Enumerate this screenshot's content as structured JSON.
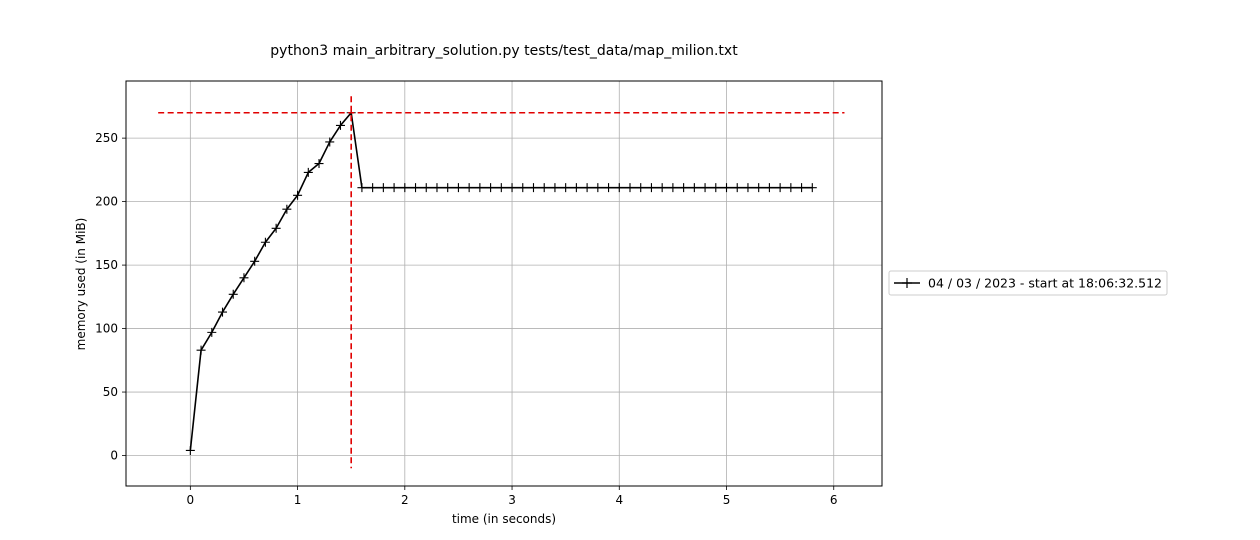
{
  "chart_data": {
    "type": "line",
    "title": "python3 main_arbitrary_solution.py tests/test_data/map_milion.txt",
    "xlabel": "time (in seconds)",
    "ylabel": "memory used (in MiB)",
    "xlim": [
      -0.6,
      6.45
    ],
    "ylim": [
      -24,
      295
    ],
    "xticks": [
      0,
      1,
      2,
      3,
      4,
      5,
      6
    ],
    "yticks": [
      0,
      50,
      100,
      150,
      200,
      250
    ],
    "xtick_labels": [
      "0",
      "1",
      "2",
      "3",
      "4",
      "5",
      "6"
    ],
    "ytick_labels": [
      "0",
      "50",
      "100",
      "150",
      "200",
      "250"
    ],
    "grid": true,
    "legend_position": "outside-right",
    "series": [
      {
        "name": "04 / 03 / 2023 - start at 18:06:32.512",
        "color": "#000000",
        "marker": "plus",
        "x": [
          0.0,
          0.1,
          0.2,
          0.3,
          0.4,
          0.5,
          0.6,
          0.7,
          0.8,
          0.9,
          1.0,
          1.1,
          1.2,
          1.3,
          1.4,
          1.5,
          1.6,
          1.7,
          1.8,
          1.9,
          2.0,
          2.1,
          2.2,
          2.3,
          2.4,
          2.5,
          2.6,
          2.7,
          2.8,
          2.9,
          3.0,
          3.1,
          3.2,
          3.3,
          3.4,
          3.5,
          3.6,
          3.7,
          3.8,
          3.9,
          4.0,
          4.1,
          4.2,
          4.3,
          4.4,
          4.5,
          4.6,
          4.7,
          4.8,
          4.9,
          5.0,
          5.1,
          5.2,
          5.3,
          5.4,
          5.5,
          5.6,
          5.7,
          5.8
        ],
        "y": [
          4,
          83,
          97,
          113,
          127,
          140,
          153,
          168,
          179,
          194,
          205,
          223,
          230,
          247,
          260,
          270,
          211,
          211,
          211,
          211,
          211,
          211,
          211,
          211,
          211,
          211,
          211,
          211,
          211,
          211,
          211,
          211,
          211,
          211,
          211,
          211,
          211,
          211,
          211,
          211,
          211,
          211,
          211,
          211,
          211,
          211,
          211,
          211,
          211,
          211,
          211,
          211,
          211,
          211,
          211,
          211,
          211,
          211,
          211
        ]
      }
    ],
    "peak_lines": {
      "color": "#e00000",
      "horizontal": {
        "y": 270,
        "x_from": -0.3,
        "x_to": 6.1
      },
      "vertical": {
        "x": 1.5,
        "y_from": -10,
        "y_to": 283
      }
    }
  }
}
